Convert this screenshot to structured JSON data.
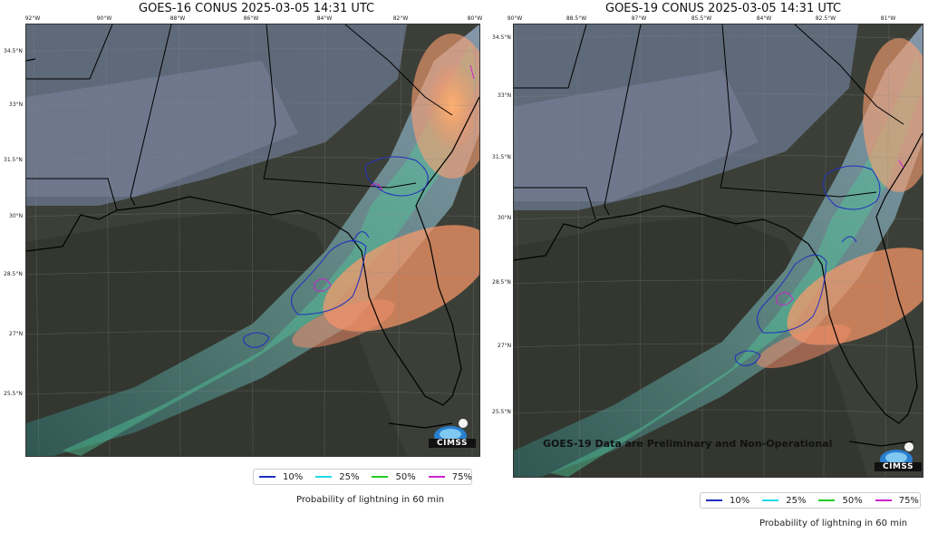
{
  "panels": [
    {
      "title": "GOES-16 CONUS 2025-03-05 14:31 UTC",
      "lon_labels": [
        "92°W",
        "90°W",
        "88°W",
        "86°W",
        "84°W",
        "82°W",
        "80°W"
      ],
      "lat_labels": [
        "34.5°N",
        "33°N",
        "31.5°N",
        "30°N",
        "28.5°N",
        "27°N",
        "25.5°N"
      ],
      "logo_text": "CIMSS",
      "legend": [
        {
          "label": "10%",
          "color": "#1f2fbf"
        },
        {
          "label": "25%",
          "color": "#22d8e6"
        },
        {
          "label": "50%",
          "color": "#22cc22"
        },
        {
          "label": "75%",
          "color": "#cc22cc"
        }
      ],
      "caption": "Probability of lightning in 60 min"
    },
    {
      "title": "GOES-19 CONUS 2025-03-05 14:31 UTC",
      "lon_labels": [
        "90°W",
        "88.5°W",
        "87°W",
        "85.5°W",
        "84°W",
        "82.5°W",
        "81°W"
      ],
      "lat_labels": [
        "34.5°N",
        "33°N",
        "31.5°N",
        "30°N",
        "28.5°N",
        "27°N",
        "25.5°N"
      ],
      "logo_text": "CIMSS",
      "watermark": "GOES-19 Data are Preliminary and Non-Operational",
      "legend": [
        {
          "label": "10%",
          "color": "#1f2fbf"
        },
        {
          "label": "25%",
          "color": "#22d8e6"
        },
        {
          "label": "50%",
          "color": "#22cc22"
        },
        {
          "label": "75%",
          "color": "#cc22cc"
        }
      ],
      "caption": "Probability of lightning in 60 min"
    }
  ]
}
